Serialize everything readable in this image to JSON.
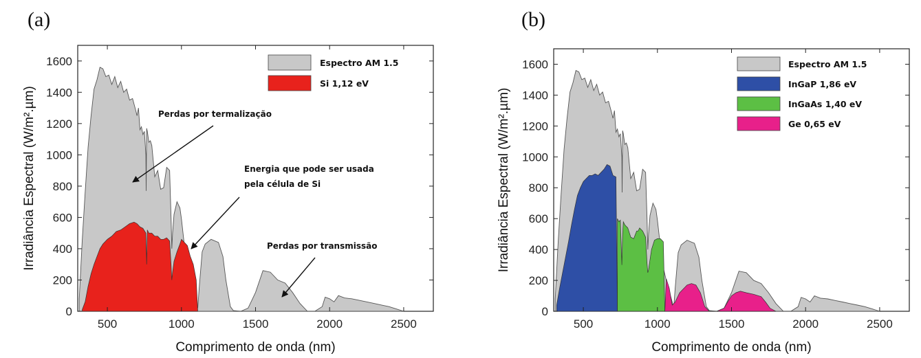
{
  "chart_data": [
    {
      "panel": "(a)",
      "type": "area",
      "xlabel": "Comprimento de onda (nm)",
      "ylabel": "Irradiância Espectral (W/m².µm)",
      "xlim": [
        300,
        2700
      ],
      "ylim": [
        0,
        1700
      ],
      "xticks": [
        500,
        1000,
        1500,
        2000,
        2500
      ],
      "yticks": [
        0,
        200,
        400,
        600,
        800,
        1000,
        1200,
        1400,
        1600
      ],
      "legend_position": "top-right",
      "series": [
        {
          "name": "Espectro AM 1.5",
          "color": "#c8c8c8",
          "x": [
            310,
            330,
            350,
            370,
            390,
            410,
            430,
            450,
            470,
            490,
            510,
            530,
            550,
            570,
            590,
            610,
            630,
            650,
            670,
            690,
            700,
            710,
            720,
            730,
            740,
            750,
            760,
            762,
            765,
            770,
            780,
            790,
            800,
            820,
            840,
            860,
            880,
            900,
            920,
            930,
            935,
            940,
            950,
            970,
            990,
            1000,
            1020,
            1040,
            1060,
            1080,
            1100,
            1110,
            1120,
            1140,
            1160,
            1200,
            1250,
            1280,
            1300,
            1330,
            1350,
            1400,
            1450,
            1500,
            1550,
            1600,
            1650,
            1700,
            1750,
            1800,
            1850,
            1900,
            1950,
            1970,
            2000,
            2030,
            2060,
            2100,
            2150,
            2200,
            2250,
            2300,
            2350,
            2400,
            2450,
            2500
          ],
          "y": [
            80,
            450,
            760,
            1050,
            1250,
            1420,
            1480,
            1560,
            1550,
            1500,
            1510,
            1450,
            1500,
            1430,
            1470,
            1400,
            1420,
            1350,
            1360,
            1290,
            1250,
            1300,
            1160,
            1180,
            1130,
            1150,
            1000,
            770,
            1170,
            1150,
            1080,
            1090,
            1060,
            860,
            900,
            780,
            790,
            920,
            900,
            600,
            400,
            500,
            620,
            700,
            660,
            590,
            420,
            280,
            200,
            130,
            60,
            20,
            150,
            380,
            430,
            460,
            440,
            350,
            200,
            30,
            5,
            0,
            20,
            120,
            260,
            250,
            200,
            180,
            120,
            50,
            0,
            0,
            30,
            90,
            80,
            60,
            100,
            85,
            80,
            70,
            60,
            50,
            40,
            30,
            15,
            0
          ]
        },
        {
          "name": "Si 1,12 eV",
          "color": "#e8221c",
          "x": [
            330,
            350,
            370,
            390,
            410,
            430,
            450,
            470,
            500,
            530,
            560,
            590,
            620,
            650,
            680,
            700,
            720,
            740,
            760,
            765,
            770,
            780,
            800,
            820,
            840,
            860,
            880,
            900,
            920,
            930,
            935,
            940,
            950,
            970,
            990,
            1000,
            1020,
            1040,
            1060,
            1080,
            1100,
            1110
          ],
          "y": [
            10,
            60,
            160,
            240,
            300,
            350,
            400,
            430,
            460,
            480,
            510,
            520,
            540,
            560,
            570,
            560,
            540,
            530,
            500,
            300,
            520,
            500,
            500,
            480,
            480,
            460,
            460,
            470,
            450,
            300,
            200,
            250,
            320,
            380,
            430,
            460,
            440,
            420,
            350,
            300,
            200,
            0
          ]
        }
      ],
      "annotations": [
        "Perdas por termalização",
        "Energia que pode ser usada",
        "pela célula de Si",
        "Perdas por transmissão"
      ]
    },
    {
      "panel": "(b)",
      "type": "area",
      "xlabel": "Comprimento de onda (nm)",
      "ylabel": "Irradiância Espectral (W/m².µm)",
      "xlim": [
        300,
        2700
      ],
      "ylim": [
        0,
        1700
      ],
      "xticks": [
        500,
        1000,
        1500,
        2000,
        2500
      ],
      "yticks": [
        0,
        200,
        400,
        600,
        800,
        1000,
        1200,
        1400,
        1600
      ],
      "legend_position": "top-right",
      "series": [
        {
          "name": "Espectro AM 1.5",
          "color": "#c8c8c8",
          "x": [
            310,
            330,
            350,
            370,
            390,
            410,
            430,
            450,
            470,
            490,
            510,
            530,
            550,
            570,
            590,
            610,
            630,
            650,
            670,
            690,
            700,
            710,
            720,
            730,
            740,
            750,
            760,
            762,
            765,
            770,
            780,
            790,
            800,
            820,
            840,
            860,
            880,
            900,
            920,
            930,
            935,
            940,
            950,
            970,
            990,
            1000,
            1020,
            1040,
            1060,
            1080,
            1100,
            1110,
            1120,
            1140,
            1160,
            1200,
            1250,
            1280,
            1300,
            1330,
            1350,
            1400,
            1450,
            1500,
            1550,
            1600,
            1650,
            1700,
            1750,
            1800,
            1850,
            1900,
            1950,
            1970,
            2000,
            2030,
            2060,
            2100,
            2150,
            2200,
            2250,
            2300,
            2350,
            2400,
            2450,
            2500
          ],
          "y": [
            80,
            450,
            760,
            1050,
            1250,
            1420,
            1480,
            1560,
            1550,
            1500,
            1510,
            1450,
            1500,
            1430,
            1470,
            1400,
            1420,
            1350,
            1360,
            1290,
            1250,
            1300,
            1160,
            1180,
            1130,
            1150,
            1000,
            770,
            1170,
            1150,
            1080,
            1090,
            1060,
            860,
            900,
            780,
            790,
            920,
            900,
            600,
            400,
            500,
            620,
            700,
            660,
            590,
            420,
            280,
            200,
            130,
            60,
            20,
            150,
            380,
            430,
            460,
            440,
            350,
            200,
            30,
            5,
            0,
            20,
            120,
            260,
            250,
            200,
            180,
            120,
            50,
            0,
            0,
            30,
            90,
            80,
            60,
            100,
            85,
            80,
            70,
            60,
            50,
            40,
            30,
            15,
            0
          ]
        },
        {
          "name": "InGaP 1,86 eV",
          "color": "#2e4fa6",
          "x": [
            320,
            340,
            360,
            380,
            400,
            420,
            440,
            460,
            480,
            500,
            520,
            540,
            560,
            580,
            600,
            620,
            640,
            660,
            680,
            700,
            720,
            730
          ],
          "y": [
            40,
            150,
            250,
            350,
            450,
            560,
            660,
            750,
            800,
            840,
            860,
            880,
            880,
            890,
            880,
            900,
            920,
            950,
            940,
            880,
            870,
            0
          ]
        },
        {
          "name": "InGaAs 1,40 eV",
          "color": "#5cbf44",
          "x": [
            730,
            740,
            750,
            760,
            765,
            770,
            780,
            800,
            820,
            840,
            860,
            870,
            880,
            900,
            920,
            930,
            935,
            940,
            960,
            980,
            1000,
            1020,
            1040,
            1050
          ],
          "y": [
            600,
            580,
            590,
            300,
            500,
            580,
            560,
            540,
            480,
            470,
            520,
            520,
            540,
            520,
            480,
            310,
            250,
            270,
            400,
            460,
            470,
            470,
            450,
            0
          ]
        },
        {
          "name": "Ge 0,65 eV",
          "color": "#e8208a",
          "x": [
            1050,
            1060,
            1080,
            1100,
            1120,
            1150,
            1200,
            1230,
            1260,
            1290,
            1320,
            1350,
            1400,
            1450,
            1480,
            1500,
            1530,
            1560,
            1600,
            1650,
            1700,
            1730,
            1760,
            1800
          ],
          "y": [
            0,
            210,
            150,
            40,
            60,
            120,
            170,
            180,
            170,
            120,
            30,
            0,
            0,
            20,
            70,
            100,
            120,
            130,
            120,
            110,
            95,
            60,
            20,
            0
          ]
        }
      ]
    }
  ]
}
